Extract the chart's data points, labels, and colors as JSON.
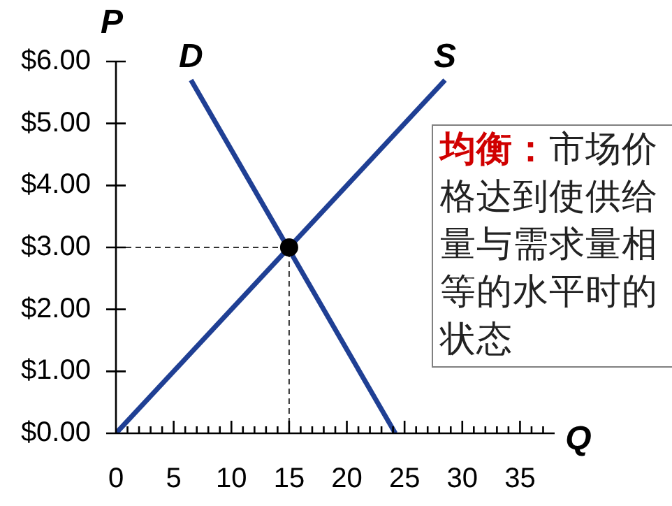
{
  "chart_data": {
    "type": "line",
    "xlabel": "Q",
    "ylabel": "P",
    "xlim": [
      0,
      38
    ],
    "ylim": [
      0,
      6
    ],
    "xticks": [
      0,
      {
        "value": 1,
        "label": null
      },
      {
        "value": 2,
        "label": null
      },
      {
        "value": 3,
        "label": null
      },
      {
        "value": 4,
        "label": null
      },
      5,
      {
        "value": 6,
        "label": null
      },
      {
        "value": 7,
        "label": null
      },
      {
        "value": 8,
        "label": null
      },
      {
        "value": 9,
        "label": null
      },
      10,
      {
        "value": 11,
        "label": null
      },
      {
        "value": 12,
        "label": null
      },
      {
        "value": 13,
        "label": null
      },
      {
        "value": 14,
        "label": null
      },
      15,
      {
        "value": 16,
        "label": null
      },
      {
        "value": 17,
        "label": null
      },
      {
        "value": 18,
        "label": null
      },
      {
        "value": 19,
        "label": null
      },
      20,
      {
        "value": 21,
        "label": null
      },
      {
        "value": 22,
        "label": null
      },
      {
        "value": 23,
        "label": null
      },
      {
        "value": 24,
        "label": null
      },
      25,
      {
        "value": 26,
        "label": null
      },
      {
        "value": 27,
        "label": null
      },
      {
        "value": 28,
        "label": null
      },
      {
        "value": 29,
        "label": null
      },
      30,
      {
        "value": 31,
        "label": null
      },
      {
        "value": 32,
        "label": null
      },
      {
        "value": 33,
        "label": null
      },
      {
        "value": 34,
        "label": null
      },
      35,
      {
        "value": 36,
        "label": null
      },
      {
        "value": 37,
        "label": null
      }
    ],
    "yticks": [
      {
        "value": 0,
        "label": "$0.00"
      },
      {
        "value": 1,
        "label": "$1.00"
      },
      {
        "value": 2,
        "label": "$2.00"
      },
      {
        "value": 3,
        "label": "$3.00"
      },
      {
        "value": 4,
        "label": "$4.00"
      },
      {
        "value": 5,
        "label": "$5.00"
      },
      {
        "value": 6,
        "label": "$6.00"
      }
    ],
    "grid": false,
    "legend": false,
    "series": [
      {
        "name": "D",
        "color": "#1f3f94",
        "x": [
          6.5,
          24.2
        ],
        "values": [
          5.7,
          0
        ]
      },
      {
        "name": "S",
        "color": "#1f3f94",
        "x": [
          0,
          28.5
        ],
        "values": [
          0,
          5.7
        ]
      },
      {
        "type": "scatter",
        "color": "#000000",
        "x": [
          15
        ],
        "values": [
          3
        ]
      }
    ],
    "ref_lines": [
      {
        "axis": "y",
        "value": 3,
        "line_style": "dashed",
        "color": "#333333"
      },
      {
        "axis": "x",
        "value": 15,
        "line_style": "dashed",
        "color": "#333333"
      }
    ],
    "annotations": [
      "均衡：",
      "市场价格达到使供给量与需求量相等的水平时的状态"
    ]
  }
}
